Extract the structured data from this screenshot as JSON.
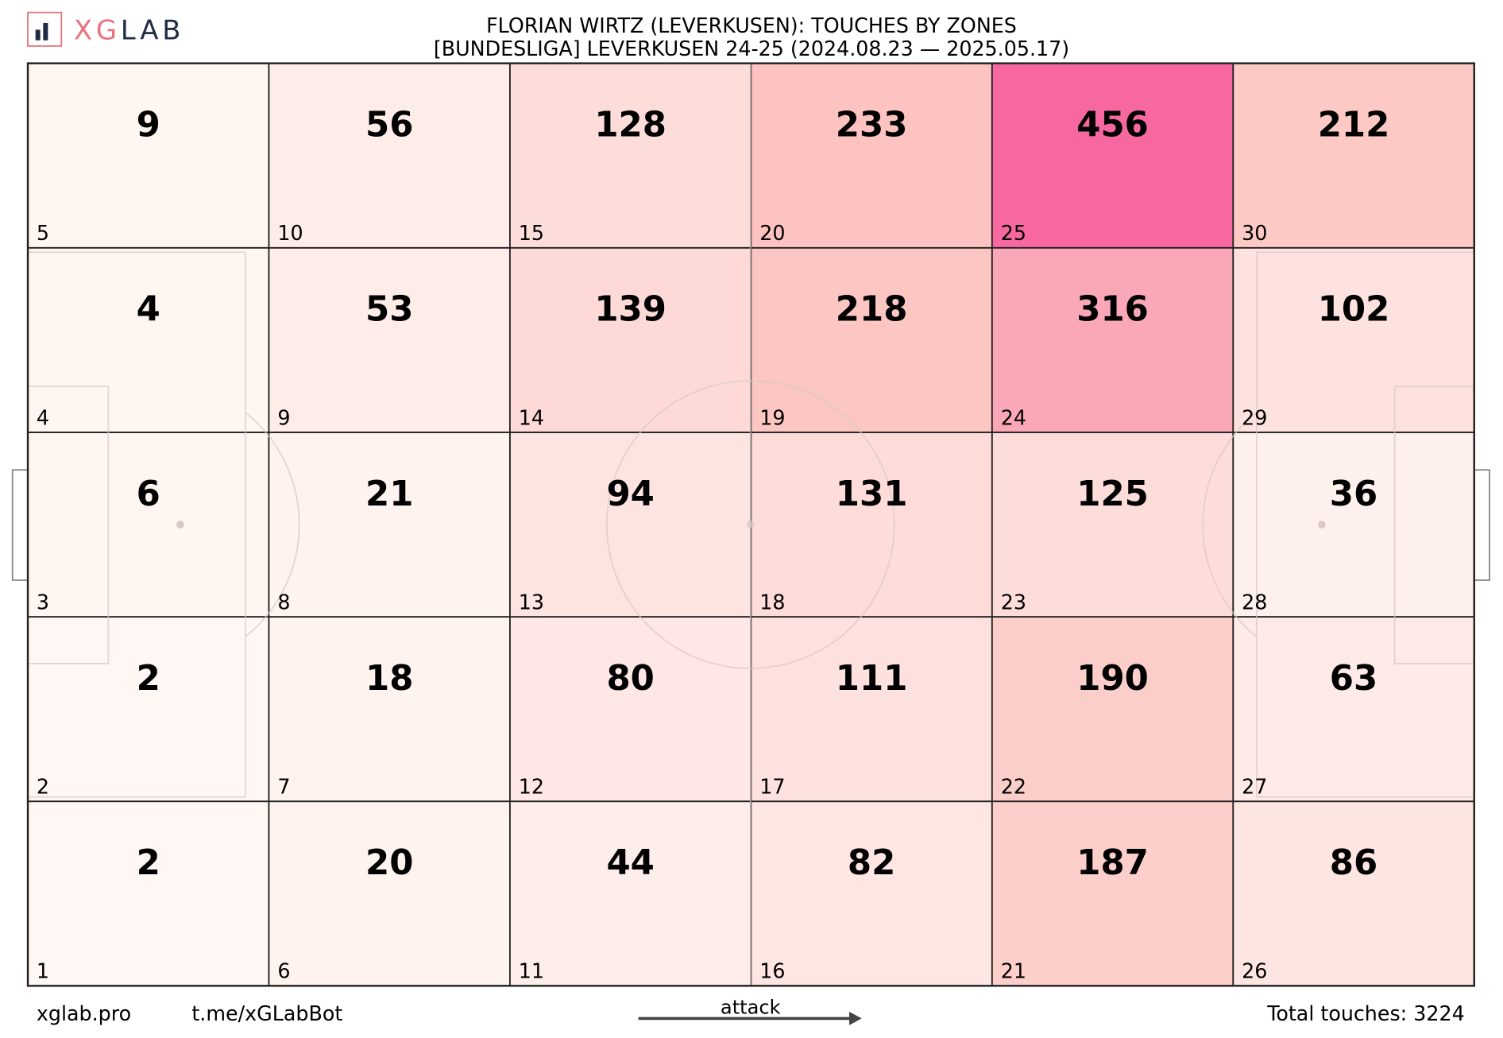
{
  "chart_data": {
    "type": "heatmap",
    "title": "FLORIAN WIRTZ (LEVERKUSEN): TOUCHES BY ZONES",
    "subtitle": "[BUNDESLIGA] LEVERKUSEN 24-25 (2024.08.23 — 2025.05.17)",
    "logo": {
      "accent": "XG",
      "rest": "LAB"
    },
    "columns": 6,
    "rows": 5,
    "zones": [
      1,
      2,
      3,
      4,
      5,
      6,
      7,
      8,
      9,
      10,
      11,
      12,
      13,
      14,
      15,
      16,
      17,
      18,
      19,
      20,
      21,
      22,
      23,
      24,
      25,
      26,
      27,
      28,
      29,
      30
    ],
    "values": [
      2,
      2,
      6,
      4,
      9,
      20,
      18,
      21,
      53,
      56,
      44,
      80,
      94,
      139,
      128,
      82,
      111,
      131,
      218,
      233,
      187,
      190,
      125,
      316,
      456,
      86,
      63,
      36,
      102,
      212
    ],
    "colors": [
      "#fff7f3",
      "#fde0dd",
      "#fcc5c0",
      "#fa9fb5",
      "#f768a1"
    ],
    "footer": {
      "site": "xglab.pro",
      "telegram": "t.me/xGLabBot",
      "direction": "attack",
      "total": "Total touches: 3224"
    }
  }
}
